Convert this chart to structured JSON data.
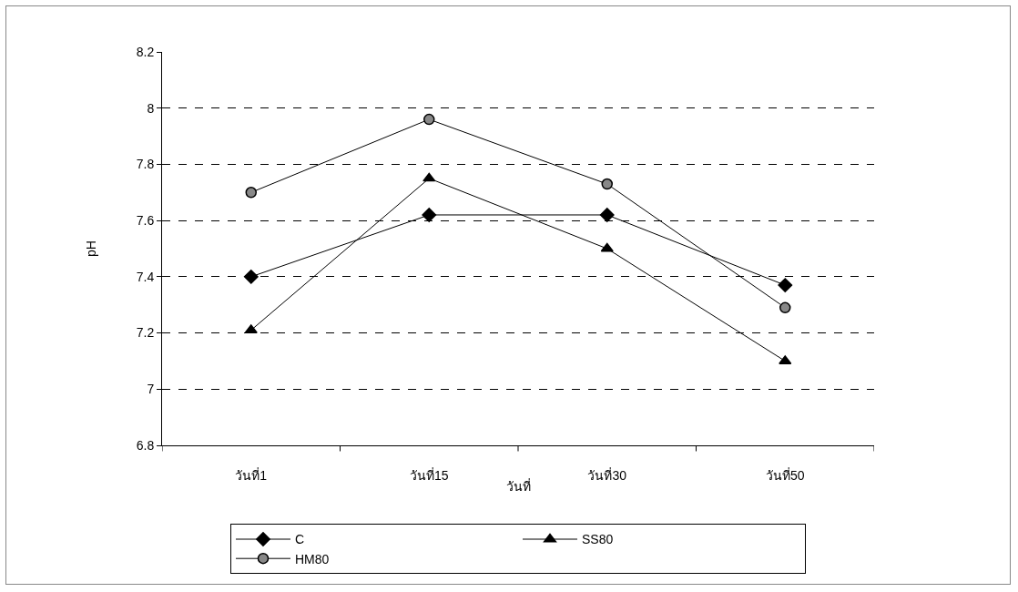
{
  "chart_data": {
    "type": "line",
    "xlabel": "วันที่",
    "ylabel": "pH",
    "categories": [
      "วันที่1",
      "วันที่15",
      "วันที่30",
      "วันที่50"
    ],
    "series": [
      {
        "name": "C",
        "color": "#000000",
        "marker": "diamond",
        "values": [
          7.4,
          7.62,
          7.62,
          7.37
        ]
      },
      {
        "name": "SS80",
        "color": "#000000",
        "marker": "triangle",
        "values": [
          7.21,
          7.75,
          7.5,
          7.1
        ]
      },
      {
        "name": "HM80",
        "color": "#000000",
        "marker": "circle",
        "values": [
          7.7,
          7.96,
          7.73,
          7.29
        ]
      }
    ],
    "ylim": [
      6.8,
      8.2
    ],
    "yticks": [
      6.8,
      7,
      7.2,
      7.4,
      7.6,
      7.8,
      8,
      8.2
    ],
    "grid": "y",
    "legend": "bottom",
    "line_style": "solid"
  }
}
